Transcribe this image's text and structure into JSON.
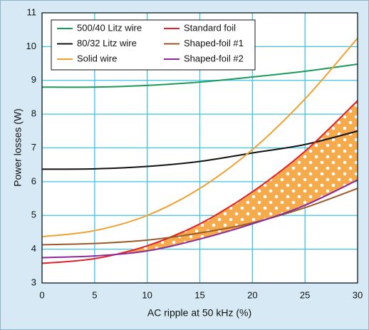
{
  "chart_data": {
    "type": "line",
    "x_label": "AC ripple at 50 kHz (%)",
    "y_label": "Power losses (W)",
    "x": [
      0,
      5,
      10,
      15,
      20,
      25,
      30
    ],
    "series": [
      {
        "name": "500/40 Litz wire",
        "color": "#1a9a5a",
        "values": [
          8.8,
          8.8,
          8.85,
          8.95,
          9.1,
          9.27,
          9.48
        ]
      },
      {
        "name": "80/32 Litz wire",
        "color": "#111111",
        "values": [
          6.37,
          6.38,
          6.45,
          6.6,
          6.85,
          7.1,
          7.5
        ]
      },
      {
        "name": "Solid wire",
        "color": "#f0a030",
        "values": [
          4.37,
          4.55,
          5.0,
          5.8,
          6.95,
          8.45,
          10.25
        ]
      },
      {
        "name": "Standard foil",
        "color": "#e0202a",
        "values": [
          3.58,
          3.72,
          4.1,
          4.75,
          5.7,
          6.9,
          8.4
        ]
      },
      {
        "name": "Shaped-foil #1",
        "color": "#9a5a2a",
        "values": [
          4.13,
          4.17,
          4.27,
          4.48,
          4.78,
          5.23,
          5.8
        ]
      },
      {
        "name": "Shaped-foil #2",
        "color": "#8a2a9a",
        "values": [
          3.75,
          3.8,
          3.95,
          4.3,
          4.75,
          5.3,
          6.05
        ]
      }
    ],
    "xlim": [
      0,
      30
    ],
    "xticks": [
      0,
      5,
      10,
      15,
      20,
      25,
      30
    ],
    "ylim": [
      3,
      11
    ],
    "yticks": [
      3,
      4,
      5,
      6,
      7,
      8,
      9,
      10,
      11
    ],
    "grid": true,
    "legend": "upper left"
  }
}
